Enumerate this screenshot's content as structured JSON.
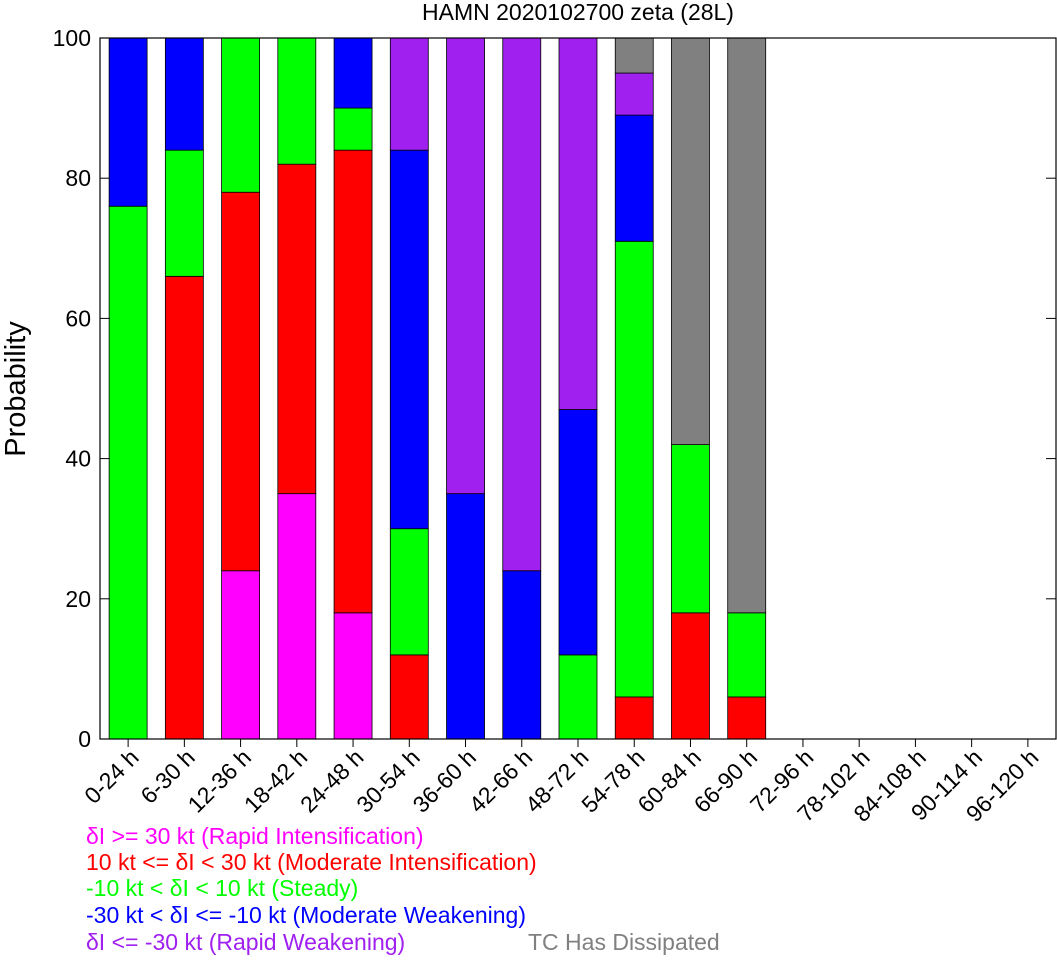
{
  "chart_data": {
    "type": "bar",
    "stacked": true,
    "title": "HAMN 2020102700 zeta (28L)",
    "xlabel": "",
    "ylabel": "Probability",
    "ylim": [
      0,
      100
    ],
    "yticks": [
      0,
      20,
      40,
      60,
      80,
      100
    ],
    "grid": false,
    "categories": [
      "0-24 h",
      "6-30 h",
      "12-36 h",
      "18-42 h",
      "24-48 h",
      "30-54 h",
      "36-60 h",
      "42-66 h",
      "48-72 h",
      "54-78 h",
      "60-84 h",
      "66-90 h",
      "72-96 h",
      "78-102 h",
      "84-108 h",
      "90-114 h",
      "96-120 h"
    ],
    "series": [
      {
        "key": "ri",
        "color": "#ff00ff",
        "values": [
          0,
          0,
          24,
          35,
          18,
          0,
          0,
          0,
          0,
          0,
          0,
          0,
          0,
          0,
          0,
          0,
          0
        ]
      },
      {
        "key": "mi",
        "color": "#ff0000",
        "values": [
          0,
          66,
          54,
          47,
          66,
          12,
          0,
          0,
          0,
          6,
          18,
          6,
          0,
          0,
          0,
          0,
          0
        ]
      },
      {
        "key": "st",
        "color": "#00ff00",
        "values": [
          76,
          18,
          22,
          18,
          6,
          18,
          0,
          0,
          12,
          65,
          24,
          12,
          0,
          0,
          0,
          0,
          0
        ]
      },
      {
        "key": "mw",
        "color": "#0000ff",
        "values": [
          24,
          16,
          0,
          0,
          10,
          54,
          35,
          24,
          35,
          18,
          0,
          0,
          0,
          0,
          0,
          0,
          0
        ]
      },
      {
        "key": "rw",
        "color": "#a020f0",
        "values": [
          0,
          0,
          0,
          0,
          0,
          16,
          65,
          76,
          53,
          6,
          0,
          0,
          0,
          0,
          0,
          0,
          0
        ]
      },
      {
        "key": "tc",
        "color": "#808080",
        "values": [
          0,
          0,
          0,
          0,
          0,
          0,
          0,
          0,
          0,
          5,
          58,
          82,
          0,
          0,
          0,
          0,
          0
        ]
      }
    ],
    "legend": [
      {
        "text": "δI >= 30 kt (Rapid Intensification)",
        "color": "#ff00ff"
      },
      {
        "text": "10 kt <= δI < 30 kt (Moderate Intensification)",
        "color": "#ff0000"
      },
      {
        "text": "-10 kt < δI < 10 kt (Steady)",
        "color": "#00ff00"
      },
      {
        "text": "-30 kt < δI <= -10 kt (Moderate Weakening)",
        "color": "#0000ff"
      },
      {
        "text": "δI <= -30 kt (Rapid Weakening)",
        "color": "#a020f0"
      },
      {
        "text": "TC Has Dissipated",
        "color": "#808080"
      }
    ],
    "legend_placement": "bottom-left"
  }
}
